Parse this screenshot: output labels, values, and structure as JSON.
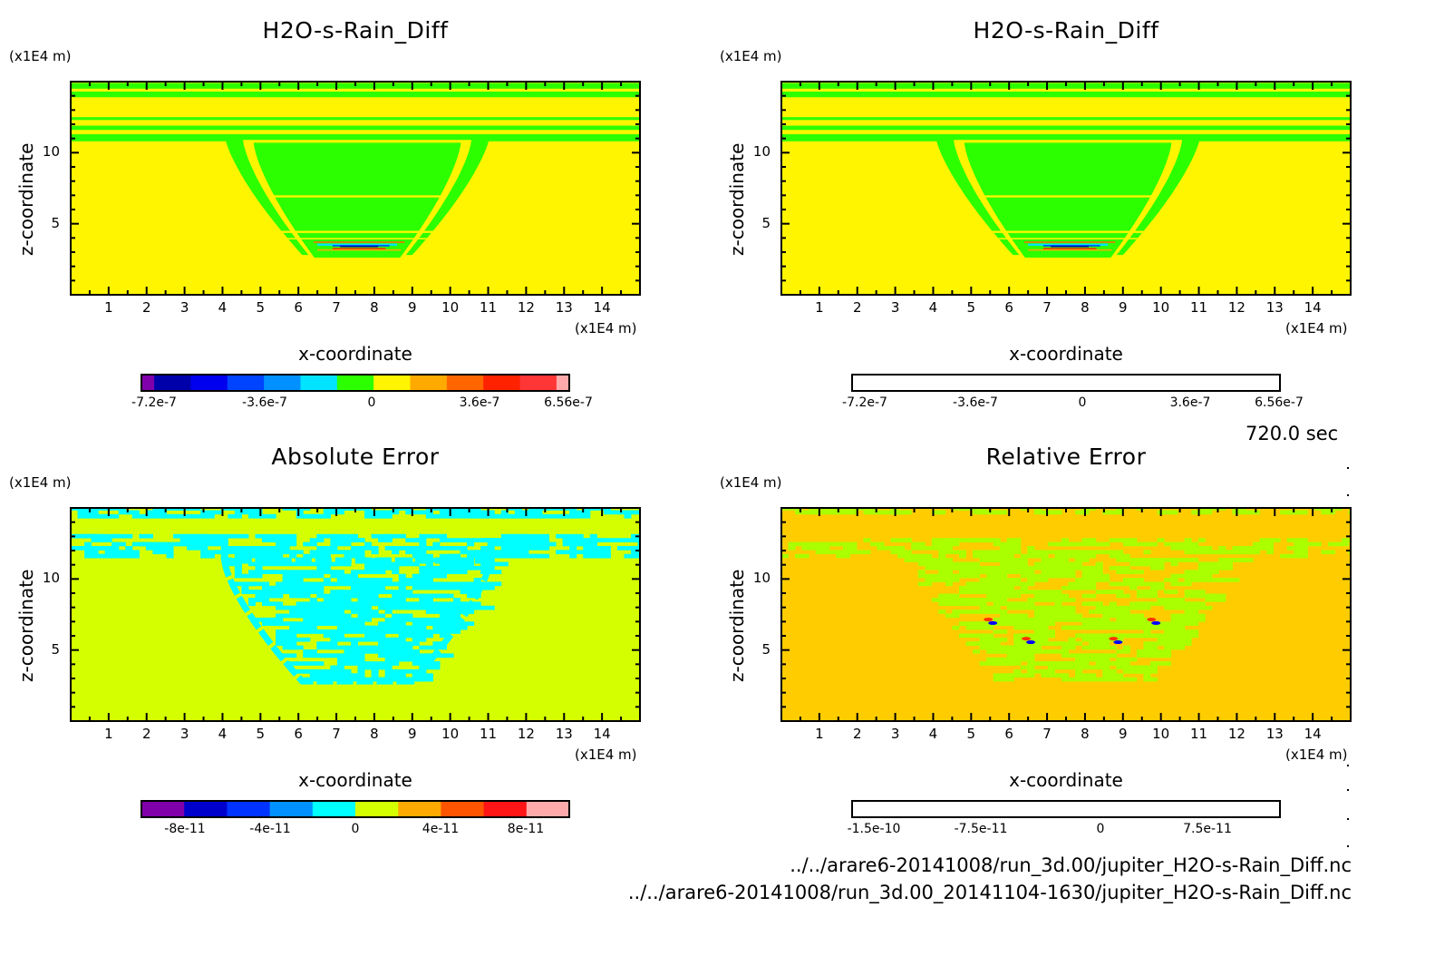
{
  "footer": {
    "time": "720.0 sec",
    "file1": "../../arare6-20141008/run_3d.00/jupiter_H2O-s-Rain_Diff.nc",
    "file2": "../../arare6-20141008/run_3d.00_20141104-1630/jupiter_H2O-s-Rain_Diff.nc"
  },
  "chart_data": [
    {
      "type": "heatmap",
      "title": "H2O-s-Rain_Diff",
      "xlabel": "x-coordinate",
      "ylabel": "z-coordinate",
      "x_unit": "(x1E4 m)",
      "y_unit": "(x1E4 m)",
      "xlim": [
        0,
        15
      ],
      "ylim": [
        0,
        15
      ],
      "x_ticks": [
        "1",
        "2",
        "3",
        "4",
        "5",
        "6",
        "7",
        "8",
        "9",
        "10",
        "11",
        "12",
        "13",
        "14"
      ],
      "y_ticks": [
        "5",
        "10"
      ],
      "colorbar": {
        "labels": [
          "-7.2e-7",
          "-3.6e-7",
          "0",
          "3.6e-7",
          "6.56e-7"
        ],
        "colors": [
          "#7f00aa",
          "#0000aa",
          "#0000ee",
          "#0044ff",
          "#0090ff",
          "#00e4ff",
          "#2cff00",
          "#fff500",
          "#ffaa00",
          "#ff6600",
          "#ff2200",
          "#ff3636",
          "#ffaaaa"
        ]
      },
      "background_level": "0",
      "feature": "bowl-shaped green anomaly centered x≈7.5, z≈3–11 with red/blue dipole at z≈3.5"
    },
    {
      "type": "heatmap",
      "title": "H2O-s-Rain_Diff",
      "xlabel": "x-coordinate",
      "ylabel": "z-coordinate",
      "x_unit": "(x1E4 m)",
      "y_unit": "(x1E4 m)",
      "xlim": [
        0,
        15
      ],
      "ylim": [
        0,
        15
      ],
      "x_ticks": [
        "1",
        "2",
        "3",
        "4",
        "5",
        "6",
        "7",
        "8",
        "9",
        "10",
        "11",
        "12",
        "13",
        "14"
      ],
      "y_ticks": [
        "5",
        "10"
      ],
      "colorbar": {
        "labels": [
          "-7.2e-7",
          "-3.6e-7",
          "0",
          "3.6e-7",
          "6.56e-7"
        ],
        "colors": [
          "#7f00aa",
          "#0000aa",
          "#0000ee",
          "#0044ff",
          "#0090ff",
          "#00e4ff",
          "#2cff00",
          "#fff500",
          "#ffaa00",
          "#ff6600",
          "#ff2200",
          "#ff3636",
          "#ffaaaa"
        ]
      }
    },
    {
      "type": "heatmap",
      "title": "Absolute Error",
      "xlabel": "x-coordinate",
      "ylabel": "z-coordinate",
      "x_unit": "(x1E4 m)",
      "y_unit": "(x1E4 m)",
      "xlim": [
        0,
        15
      ],
      "ylim": [
        0,
        15
      ],
      "x_ticks": [
        "1",
        "2",
        "3",
        "4",
        "5",
        "6",
        "7",
        "8",
        "9",
        "10",
        "11",
        "12",
        "13",
        "14"
      ],
      "y_ticks": [
        "5",
        "10"
      ],
      "colorbar": {
        "labels": [
          "-8e-11",
          "-4e-11",
          "0",
          "4e-11",
          "8e-11"
        ],
        "colors": [
          "#8000aa",
          "#0000cc",
          "#0033ff",
          "#0090ff",
          "#00ffff",
          "#d4ff00",
          "#ffaa00",
          "#ff5500",
          "#ff1515",
          "#ffaaaa"
        ]
      }
    },
    {
      "type": "heatmap",
      "title": "Relative Error",
      "xlabel": "x-coordinate",
      "ylabel": "z-coordinate",
      "x_unit": "(x1E4 m)",
      "y_unit": "(x1E4 m)",
      "xlim": [
        0,
        15
      ],
      "ylim": [
        0,
        15
      ],
      "x_ticks": [
        "1",
        "2",
        "3",
        "4",
        "5",
        "6",
        "7",
        "8",
        "9",
        "10",
        "11",
        "12",
        "13",
        "14"
      ],
      "y_ticks": [
        "5",
        "10"
      ],
      "colorbar": {
        "labels": [
          "-1.5e-10",
          "-7.5e-11",
          "0",
          "7.5e-11"
        ],
        "colors": [
          "#0000aa",
          "#0000ff",
          "#0066ff",
          "#00b4ff",
          "#00ffcc",
          "#aaff00",
          "#ffcc00",
          "#ff8000",
          "#ff3300",
          "#ff3636",
          "#ffaaaa"
        ]
      }
    }
  ]
}
